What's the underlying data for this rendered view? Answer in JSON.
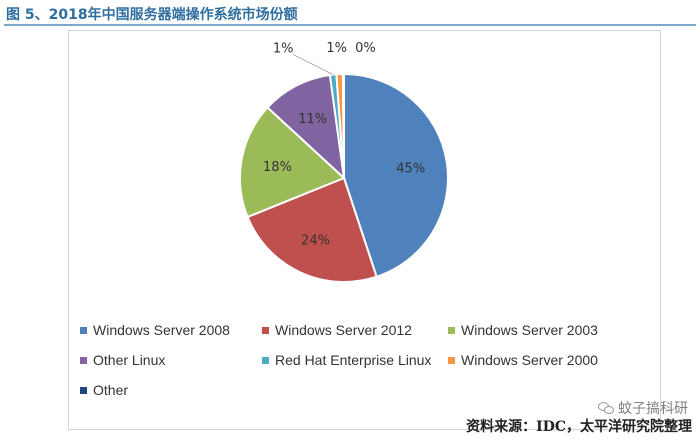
{
  "header": {
    "title": "图 5、2018年中国服务器端操作系统市场份额"
  },
  "chart_data": {
    "type": "pie",
    "title": "",
    "series": [
      {
        "categories": [
          "Windows Server 2008",
          "Windows Server 2012",
          "Windows Server 2003",
          "Other Linux",
          "Red Hat Enterprise Linux",
          "Windows Server 2000",
          "Other"
        ],
        "values": [
          45,
          24,
          18,
          11,
          1,
          1,
          0
        ],
        "labels": [
          "45%",
          "24%",
          "18%",
          "11%",
          "1%",
          "1%",
          "0%"
        ],
        "colors": [
          "#4f81bd",
          "#c0504d",
          "#9bbb59",
          "#8064a2",
          "#4bacc6",
          "#f79646",
          "#1f497d"
        ]
      }
    ],
    "legend": {
      "placement": "bottom",
      "entries": [
        "Windows Server 2008",
        "Windows Server 2012",
        "Windows Server 2003",
        "Other Linux",
        "Red Hat Enterprise Linux",
        "Windows Server 2000",
        "Other"
      ]
    }
  },
  "footer": {
    "source": "资料来源：IDC，太平洋研究院整理",
    "watermark": "蚊子搞科研"
  }
}
